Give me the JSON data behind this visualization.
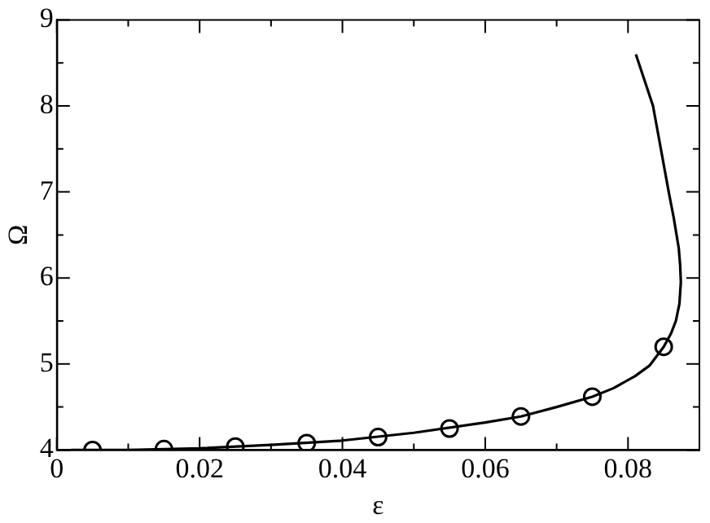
{
  "chart_data": {
    "type": "line",
    "xlabel": "ε",
    "ylabel": "Ω",
    "xlim": [
      0,
      0.09
    ],
    "ylim": [
      4,
      9
    ],
    "xticks": [
      0,
      {
        "value": 0.01,
        "label": null
      },
      0.02,
      {
        "value": 0.03,
        "label": null
      },
      0.04,
      {
        "value": 0.05,
        "label": null
      },
      0.06,
      {
        "value": 0.07,
        "label": null
      },
      0.08,
      {
        "value": 0.09,
        "label": null
      }
    ],
    "yticks": [
      4,
      {
        "value": 4.5,
        "label": null
      },
      5,
      {
        "value": 5.5,
        "label": null
      },
      6,
      {
        "value": 6.5,
        "label": null
      },
      7,
      {
        "value": 7.5,
        "label": null
      },
      8,
      {
        "value": 8.5,
        "label": null
      },
      9
    ],
    "grid": false,
    "legend": false,
    "series": [
      {
        "color": "#000000",
        "marker": "none",
        "line_style": "solid",
        "x": [
          0.002,
          0.01,
          0.02,
          0.03,
          0.04,
          0.05,
          0.06,
          0.065,
          0.07,
          0.075,
          0.078,
          0.081,
          0.083,
          0.085,
          0.086,
          0.0867,
          0.0872,
          0.0874,
          0.0873,
          0.0871,
          0.0868,
          0.0864,
          0.0857,
          0.0846,
          0.0835,
          0.0823,
          0.0811
        ],
        "values": [
          4.0,
          4.0,
          4.02,
          4.06,
          4.11,
          4.2,
          4.32,
          4.39,
          4.5,
          4.62,
          4.72,
          4.86,
          4.98,
          5.2,
          5.35,
          5.5,
          5.7,
          5.95,
          6.15,
          6.35,
          6.5,
          6.7,
          7.0,
          7.5,
          8.0,
          8.3,
          8.6
        ]
      },
      {
        "type": "scatter",
        "color": "#000000",
        "marker": "circle",
        "x": [
          0.005,
          0.015,
          0.025,
          0.035,
          0.045,
          0.055,
          0.065,
          0.075,
          0.085
        ],
        "values": [
          4.0,
          4.01,
          4.04,
          4.08,
          4.15,
          4.25,
          4.39,
          4.62,
          5.2
        ]
      }
    ]
  }
}
